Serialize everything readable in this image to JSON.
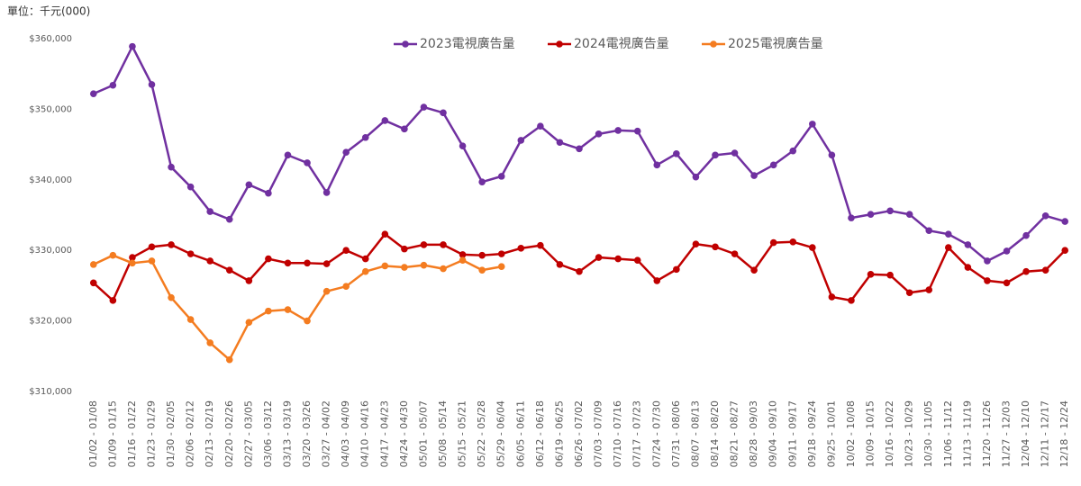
{
  "chart_data": {
    "type": "line",
    "unit_label": "單位：千元(000)",
    "categories": [
      "01/02 - 01/08",
      "01/09 - 01/15",
      "01/16 - 01/22",
      "01/23 - 01/29",
      "01/30 - 02/05",
      "02/06 - 02/12",
      "02/13 - 02/19",
      "02/20 - 02/26",
      "02/27 - 03/05",
      "03/06 - 03/12",
      "03/13 - 03/19",
      "03/20 - 03/26",
      "03/27 - 04/02",
      "04/03 - 04/09",
      "04/10 - 04/16",
      "04/17 - 04/23",
      "04/24 - 04/30",
      "05/01 - 05/07",
      "05/08 - 05/14",
      "05/15 - 05/21",
      "05/22 - 05/28",
      "05/29 - 06/04",
      "06/05 - 06/11",
      "06/12 - 06/18",
      "06/19 - 06/25",
      "06/26 - 07/02",
      "07/03 - 07/09",
      "07/10 - 07/16",
      "07/17 - 07/23",
      "07/24 - 07/30",
      "07/31 - 08/06",
      "08/07 - 08/13",
      "08/14 - 08/20",
      "08/21 - 08/27",
      "08/28 - 09/03",
      "09/04 - 09/10",
      "09/11 - 09/17",
      "09/18 - 09/24",
      "09/25 - 10/01",
      "10/02 - 10/08",
      "10/09 - 10/15",
      "10/16 - 10/22",
      "10/23 - 10/29",
      "10/30 - 11/05",
      "11/06 - 11/12",
      "11/13 - 11/19",
      "11/20 - 11/26",
      "11/27 - 12/03",
      "12/04 - 12/10",
      "12/11 - 12/17",
      "12/18 - 12/24"
    ],
    "series": [
      {
        "name": "2023電視廣告量",
        "color": "#7030a0",
        "values": [
          352200,
          353400,
          358900,
          353500,
          341800,
          339000,
          335500,
          334400,
          339300,
          338100,
          343500,
          342400,
          338200,
          343900,
          346000,
          348400,
          347200,
          350300,
          349500,
          344800,
          339700,
          340500,
          345600,
          347600,
          345300,
          344400,
          346500,
          347000,
          346900,
          342100,
          343700,
          340400,
          343500,
          343800,
          340600,
          342100,
          344100,
          347900,
          343500,
          334600,
          335100,
          335600,
          335100,
          332800,
          332300,
          330800,
          328500,
          329900,
          332100,
          334900,
          334100
        ]
      },
      {
        "name": "2024電視廣告量",
        "color": "#c00000",
        "values": [
          325400,
          322900,
          329000,
          330500,
          330800,
          329500,
          328500,
          327200,
          325700,
          328800,
          328200,
          328200,
          328100,
          330000,
          328800,
          332300,
          330200,
          330800,
          330800,
          329400,
          329300,
          329500,
          330300,
          330700,
          328000,
          327000,
          329000,
          328800,
          328600,
          325700,
          327300,
          330900,
          330500,
          329500,
          327200,
          331100,
          331200,
          330400,
          323400,
          322900,
          326600,
          326500,
          324000,
          324400,
          330400,
          327600,
          325700,
          325400,
          327000,
          327200,
          330000
        ]
      },
      {
        "name": "2025電視廣告量",
        "color": "#f47c20",
        "values": [
          328000,
          329300,
          328200,
          328500,
          323300,
          320200,
          316900,
          314500,
          319800,
          321400,
          321600,
          320000,
          324200,
          324900,
          327000,
          327800,
          327600,
          327900,
          327400,
          328600,
          327200,
          327700,
          null,
          null,
          null,
          null,
          null,
          null,
          null,
          null,
          null,
          null,
          null,
          null,
          null,
          null,
          null,
          null,
          null,
          null,
          null,
          null,
          null,
          null,
          null,
          null,
          null,
          null,
          null,
          null,
          null
        ]
      }
    ],
    "ylim": [
      310000,
      360000
    ],
    "yticks": [
      {
        "value": 310000,
        "label": "$310,000"
      },
      {
        "value": 320000,
        "label": "$320,000"
      },
      {
        "value": 330000,
        "label": "$330,000"
      },
      {
        "value": 340000,
        "label": "$340,000"
      },
      {
        "value": 350000,
        "label": "$350,000"
      },
      {
        "value": 360000,
        "label": "$360,000"
      }
    ],
    "legend": "top"
  }
}
